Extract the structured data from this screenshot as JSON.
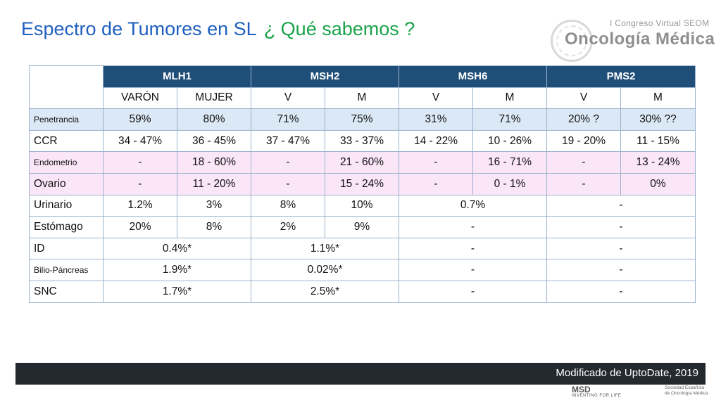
{
  "title": {
    "part1": "Espectro de Tumores en SL",
    "part2": "¿ Qué sabemos ?"
  },
  "logo": {
    "congress": "I Congreso Virtual SEOM",
    "brand": "Oncología Médica"
  },
  "table": {
    "genes": [
      "MLH1",
      "MSH2",
      "MSH6",
      "PMS2"
    ],
    "subheaders": [
      "VARÓN",
      "MUJER",
      "V",
      "M",
      "V",
      "M",
      "V",
      "M"
    ],
    "rows": [
      {
        "label": "Penetrancia",
        "cells": [
          "59%",
          "80%",
          "71%",
          "75%",
          "31%",
          "71%",
          "20% ?",
          "30% ??"
        ]
      },
      {
        "label": "CCR",
        "cells": [
          "34 - 47%",
          "36 - 45%",
          "37 - 47%",
          "33 - 37%",
          "14 - 22%",
          "10 - 26%",
          "19 - 20%",
          "11 - 15%"
        ]
      },
      {
        "label": "Endometrio",
        "cells": [
          "-",
          "18 - 60%",
          "-",
          "21 - 60%",
          "-",
          "16 - 71%",
          "-",
          "13 - 24%"
        ]
      },
      {
        "label": "Ovario",
        "cells": [
          "-",
          "11 - 20%",
          "-",
          "15 - 24%",
          "-",
          "0 - 1%",
          "-",
          "0%"
        ]
      },
      {
        "label": "Urinario",
        "cells": [
          "1.2%",
          "3%",
          "8%",
          "10%",
          "0.7%",
          "-"
        ]
      },
      {
        "label": "Estómago",
        "cells": [
          "20%",
          "8%",
          "2%",
          "9%",
          "-",
          "-"
        ]
      },
      {
        "label": "ID",
        "cells": [
          "0.4%*",
          "1.1%*",
          "-",
          "-"
        ]
      },
      {
        "label": "Bilio-Páncreas",
        "cells": [
          "1.9%*",
          "0.02%*",
          "-",
          "-"
        ]
      },
      {
        "label": "SNC",
        "cells": [
          "1.7%*",
          "2.5%*",
          "-",
          "-"
        ]
      }
    ]
  },
  "footer": {
    "source": "Modificado de UptoDate, 2019"
  },
  "sponsor": {
    "name": "MSD",
    "tagline": "INVENTING FOR LIFE"
  },
  "society": {
    "line1": "Sociedad Española",
    "line2": "de Oncología Médica"
  }
}
